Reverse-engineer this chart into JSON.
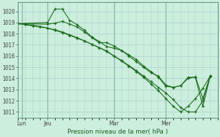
{
  "title": "Pression niveau de la mer( hPa )",
  "ylabel_vals": [
    1011,
    1012,
    1013,
    1014,
    1015,
    1016,
    1017,
    1018,
    1019,
    1020
  ],
  "ylim": [
    1010.5,
    1020.8
  ],
  "xlim": [
    0,
    27
  ],
  "background_color": "#cceedd",
  "grid_color": "#aacccc",
  "line_color": "#1a6b1a",
  "xtick_labels": [
    "Lun",
    "Jeu",
    "Mar",
    "Mer"
  ],
  "xtick_positions": [
    0.5,
    4,
    13,
    20
  ],
  "vline_positions": [
    0.5,
    4,
    13,
    20
  ],
  "series1_x": [
    0,
    1,
    2,
    3,
    4,
    5,
    6,
    7,
    8,
    9,
    10,
    11,
    12,
    13,
    14,
    15,
    16,
    17,
    18,
    19,
    20,
    21,
    22,
    23,
    24,
    25,
    26
  ],
  "series1_y": [
    1018.9,
    1018.85,
    1018.75,
    1018.65,
    1018.5,
    1018.3,
    1018.1,
    1017.85,
    1017.6,
    1017.35,
    1017.05,
    1016.75,
    1016.4,
    1016.0,
    1015.55,
    1015.1,
    1014.6,
    1014.1,
    1013.5,
    1012.9,
    1012.2,
    1011.5,
    1011.0,
    1011.5,
    1012.2,
    1013.1,
    1014.2
  ],
  "series2_x": [
    0,
    4,
    5,
    6,
    7,
    8,
    9,
    10,
    11,
    12,
    13,
    14,
    15,
    16,
    17,
    18,
    19,
    20,
    21,
    22,
    23,
    24,
    25,
    26
  ],
  "series2_y": [
    1018.9,
    1019.0,
    1020.2,
    1020.2,
    1019.2,
    1018.8,
    1018.3,
    1017.7,
    1017.3,
    1016.85,
    1016.7,
    1016.5,
    1016.1,
    1015.7,
    1015.1,
    1014.6,
    1014.1,
    1013.3,
    1013.2,
    1013.35,
    1014.1,
    1014.1,
    1011.5,
    1014.2
  ],
  "series3_x": [
    0,
    4,
    5,
    6,
    7,
    8,
    9,
    10,
    11,
    12,
    13,
    14,
    15,
    16,
    17,
    18,
    19,
    20,
    21,
    22,
    23,
    24,
    25,
    26
  ],
  "series3_y": [
    1018.9,
    1018.85,
    1018.95,
    1019.1,
    1018.85,
    1018.6,
    1018.15,
    1017.65,
    1017.2,
    1017.2,
    1016.9,
    1016.5,
    1016.0,
    1015.5,
    1015.0,
    1014.5,
    1014.2,
    1013.4,
    1013.2,
    1013.35,
    1014.0,
    1014.15,
    1012.2,
    1014.2
  ],
  "series4_x": [
    0,
    1,
    2,
    3,
    4,
    5,
    6,
    7,
    8,
    9,
    10,
    11,
    12,
    13,
    14,
    15,
    16,
    17,
    18,
    19,
    20,
    21,
    22,
    23,
    24,
    25,
    26
  ],
  "series4_y": [
    1018.9,
    1018.8,
    1018.7,
    1018.6,
    1018.5,
    1018.35,
    1018.15,
    1017.9,
    1017.65,
    1017.35,
    1017.05,
    1016.75,
    1016.45,
    1016.0,
    1015.6,
    1015.15,
    1014.7,
    1014.2,
    1013.7,
    1013.2,
    1012.7,
    1012.1,
    1011.4,
    1011.0,
    1011.0,
    1012.0,
    1014.2
  ]
}
